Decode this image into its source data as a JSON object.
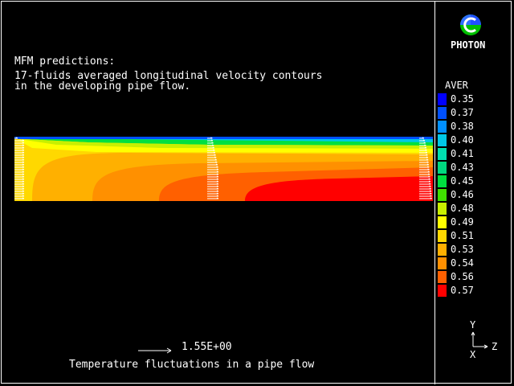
{
  "app": {
    "brand": "PHOTON"
  },
  "notes": {
    "title": "MFM predictions:",
    "line1": "17-fluids averaged longitudinal velocity contours",
    "line2": "in the developing pipe flow."
  },
  "footer": {
    "title": "Temperature fluctuations in a pipe flow",
    "reference_vector_label": "1.55E+00"
  },
  "legend": {
    "title": "AVER",
    "items": [
      {
        "value": "0.35",
        "color": "#0000ff"
      },
      {
        "value": "0.37",
        "color": "#0050ff"
      },
      {
        "value": "0.38",
        "color": "#0090ff"
      },
      {
        "value": "0.40",
        "color": "#00c8e8"
      },
      {
        "value": "0.41",
        "color": "#00e0b0"
      },
      {
        "value": "0.43",
        "color": "#00d880"
      },
      {
        "value": "0.45",
        "color": "#00e040"
      },
      {
        "value": "0.46",
        "color": "#40e000"
      },
      {
        "value": "0.48",
        "color": "#c8f000"
      },
      {
        "value": "0.49",
        "color": "#ffff00"
      },
      {
        "value": "0.51",
        "color": "#ffd800"
      },
      {
        "value": "0.53",
        "color": "#ffb000"
      },
      {
        "value": "0.54",
        "color": "#ff9000"
      },
      {
        "value": "0.56",
        "color": "#ff6000"
      },
      {
        "value": "0.57",
        "color": "#ff0000"
      }
    ]
  },
  "axes": {
    "y": "Y",
    "z": "Z",
    "x": "X"
  },
  "plot": {
    "band_colors": {
      "low": "#00e040",
      "mid1": "#c8f000",
      "mid2": "#ffff00",
      "mid3": "#ffd800",
      "high1": "#ffb000",
      "high2": "#ff9000",
      "high3": "#ff6000",
      "peak": "#ff0000"
    },
    "vector_color": "#ffffff"
  }
}
